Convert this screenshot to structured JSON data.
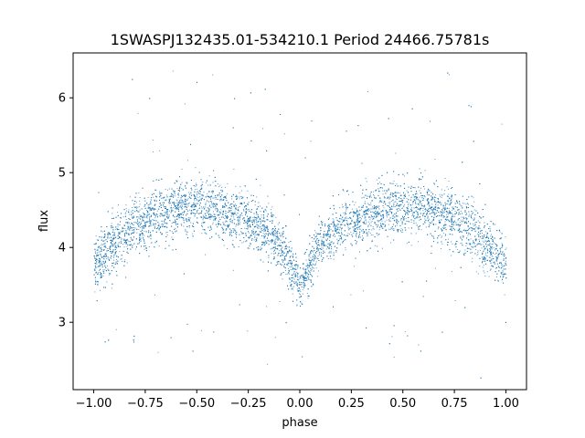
{
  "chart_data": {
    "type": "scatter",
    "title": "1SWASPJ132435.01-534210.1 Period 24466.75781s",
    "xlabel": "phase",
    "ylabel": "flux",
    "xlim": [
      -1.1,
      1.1
    ],
    "ylim": [
      2.1,
      6.6
    ],
    "xticks": [
      -1.0,
      -0.75,
      -0.5,
      -0.25,
      0.0,
      0.25,
      0.5,
      0.75,
      1.0
    ],
    "xtick_labels": [
      "−1.00",
      "−0.75",
      "−0.50",
      "−0.25",
      "0.00",
      "0.25",
      "0.50",
      "0.75",
      "1.00"
    ],
    "yticks": [
      3,
      4,
      5,
      6
    ],
    "ytick_labels": [
      "3",
      "4",
      "5",
      "6"
    ],
    "grid": false,
    "marker_color": "#1f77b4",
    "series": [
      {
        "values_described_by": "phase-folded light curve, approximate mean flux profile",
        "x": [
          -1.0,
          -0.9,
          -0.8,
          -0.7,
          -0.6,
          -0.5,
          -0.4,
          -0.3,
          -0.2,
          -0.1,
          0.0,
          0.1,
          0.2,
          0.3,
          0.4,
          0.5,
          0.6,
          0.7,
          0.8,
          0.9,
          1.0
        ],
        "y": [
          3.75,
          4.05,
          4.3,
          4.45,
          4.55,
          4.55,
          4.5,
          4.4,
          4.3,
          4.05,
          3.5,
          4.05,
          4.3,
          4.4,
          4.5,
          4.55,
          4.55,
          4.45,
          4.3,
          4.05,
          3.75
        ],
        "scatter_width": [
          0.35,
          0.35,
          0.35,
          0.35,
          0.35,
          0.35,
          0.35,
          0.35,
          0.3,
          0.3,
          0.25,
          0.3,
          0.3,
          0.35,
          0.35,
          0.35,
          0.35,
          0.35,
          0.35,
          0.35,
          0.35
        ]
      }
    ]
  }
}
